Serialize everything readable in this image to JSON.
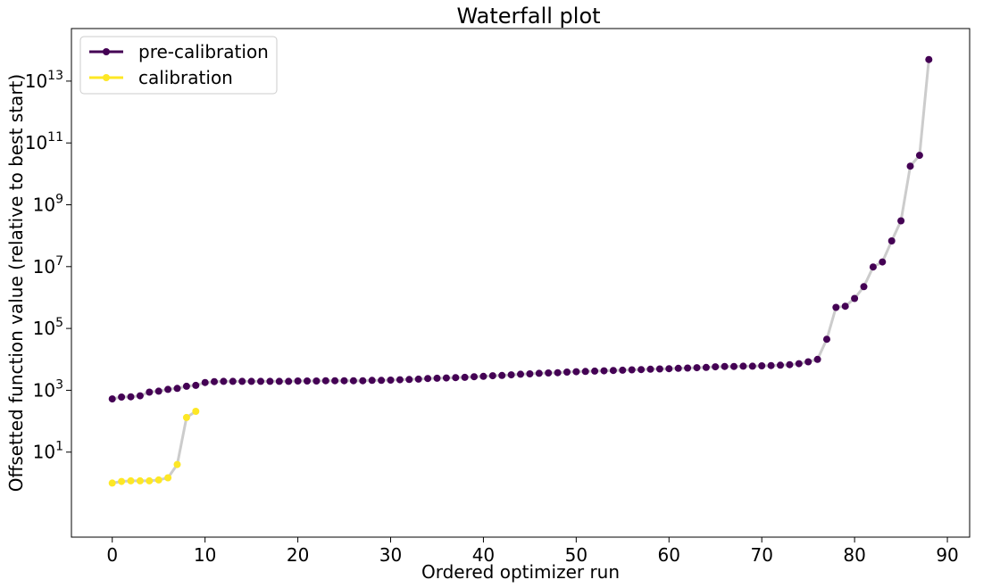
{
  "chart_data": {
    "type": "line",
    "title": "Waterfall plot",
    "xlabel": "Ordered optimizer run",
    "ylabel": "Offsetted function value (relative to best start)",
    "yscale": "log",
    "xlim": [
      -4.4,
      92.4
    ],
    "ylim_log10": [
      -1.75,
      14.7
    ],
    "xticks": [
      0,
      10,
      20,
      30,
      40,
      50,
      60,
      70,
      80,
      90
    ],
    "yticks": [
      {
        "exp": 1,
        "base": "10",
        "sup": "1"
      },
      {
        "exp": 3,
        "base": "10",
        "sup": "3"
      },
      {
        "exp": 5,
        "base": "10",
        "sup": "5"
      },
      {
        "exp": 7,
        "base": "10",
        "sup": "7"
      },
      {
        "exp": 9,
        "base": "10",
        "sup": "9"
      },
      {
        "exp": 11,
        "base": "10",
        "sup": "11"
      },
      {
        "exp": 13,
        "base": "10",
        "sup": "13"
      }
    ],
    "grid": false,
    "legend_position": "top-left",
    "connector_color": "#cccccc",
    "series": [
      {
        "name": "pre-calibration",
        "color": "#440154",
        "log10_values": [
          2.72,
          2.78,
          2.79,
          2.82,
          2.94,
          2.97,
          3.03,
          3.06,
          3.13,
          3.16,
          3.25,
          3.28,
          3.29,
          3.29,
          3.29,
          3.29,
          3.29,
          3.29,
          3.29,
          3.29,
          3.3,
          3.3,
          3.3,
          3.31,
          3.31,
          3.31,
          3.31,
          3.31,
          3.32,
          3.32,
          3.33,
          3.34,
          3.35,
          3.36,
          3.38,
          3.39,
          3.4,
          3.41,
          3.42,
          3.44,
          3.45,
          3.47,
          3.48,
          3.5,
          3.52,
          3.53,
          3.55,
          3.56,
          3.57,
          3.59,
          3.6,
          3.61,
          3.62,
          3.63,
          3.64,
          3.65,
          3.66,
          3.67,
          3.68,
          3.69,
          3.7,
          3.71,
          3.72,
          3.73,
          3.74,
          3.76,
          3.77,
          3.77,
          3.78,
          3.78,
          3.79,
          3.8,
          3.81,
          3.83,
          3.86,
          3.92,
          4.0,
          4.65,
          5.68,
          5.72,
          5.97,
          6.35,
          6.99,
          7.15,
          7.83,
          8.48,
          10.25,
          10.6,
          13.7
        ]
      },
      {
        "name": "calibration",
        "color": "#fde725",
        "log10_values": [
          0.0,
          0.05,
          0.07,
          0.07,
          0.07,
          0.1,
          0.17,
          0.6,
          2.12,
          2.32
        ]
      }
    ]
  }
}
